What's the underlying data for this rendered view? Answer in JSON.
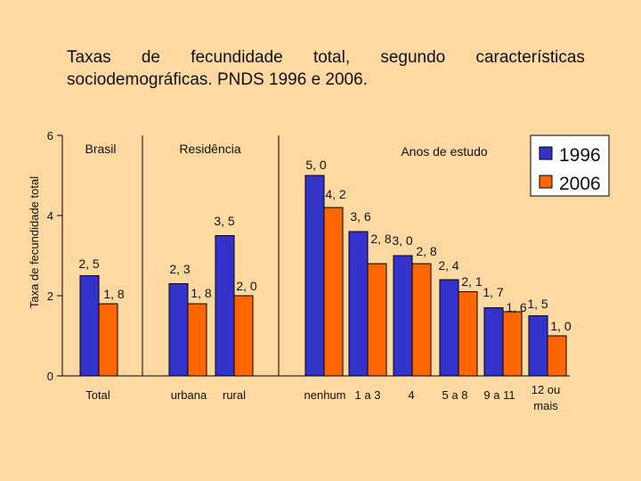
{
  "title": {
    "words": [
      "Taxas",
      "de",
      "fecundidade",
      "total,",
      "segundo",
      "características"
    ],
    "line2": "sociodemográficas. PNDS 1996 e 2006."
  },
  "chart_data": {
    "type": "bar",
    "ylabel": "Taxa de fecundidade total",
    "ylim": [
      0,
      6
    ],
    "yticks": [
      0,
      2,
      4,
      6
    ],
    "grid": false,
    "legend_position": "top-right",
    "series": [
      {
        "name": "1996",
        "color": "#3333cc",
        "values": [
          2.5,
          2.3,
          3.5,
          5.0,
          3.6,
          3.0,
          2.4,
          1.7,
          1.5
        ]
      },
      {
        "name": "2006",
        "color": "#ff6600",
        "values": [
          1.8,
          1.8,
          2.0,
          4.2,
          2.8,
          2.8,
          2.1,
          1.6,
          1.0
        ]
      }
    ],
    "value_labels": [
      [
        "2, 5",
        "2, 3",
        "3, 5",
        "5, 0",
        "3, 6",
        "3, 0",
        "2, 4",
        "1, 7",
        "1, 5"
      ],
      [
        "1, 8",
        "1, 8",
        "2, 0",
        "4, 2",
        "2, 8",
        "2, 8",
        "2, 1",
        "1, 6",
        "1, 0"
      ]
    ],
    "categories": [
      "Total",
      "urbana",
      "rural",
      "nenhum",
      "1 a 3",
      "4",
      "5 a 8",
      "9 a 11",
      "12 ou mais"
    ],
    "category_label_lines": [
      [
        "Total"
      ],
      [
        "urbana"
      ],
      [
        "rural"
      ],
      [
        "nenhum"
      ],
      [
        "1 a 3"
      ],
      [
        "4"
      ],
      [
        "5 a 8"
      ],
      [
        "9 a 11"
      ],
      [
        "12 ou",
        "mais"
      ]
    ],
    "groups": [
      {
        "label": "Brasil"
      },
      {
        "label": "Residência"
      },
      {
        "label": "Anos de estudo"
      }
    ]
  }
}
